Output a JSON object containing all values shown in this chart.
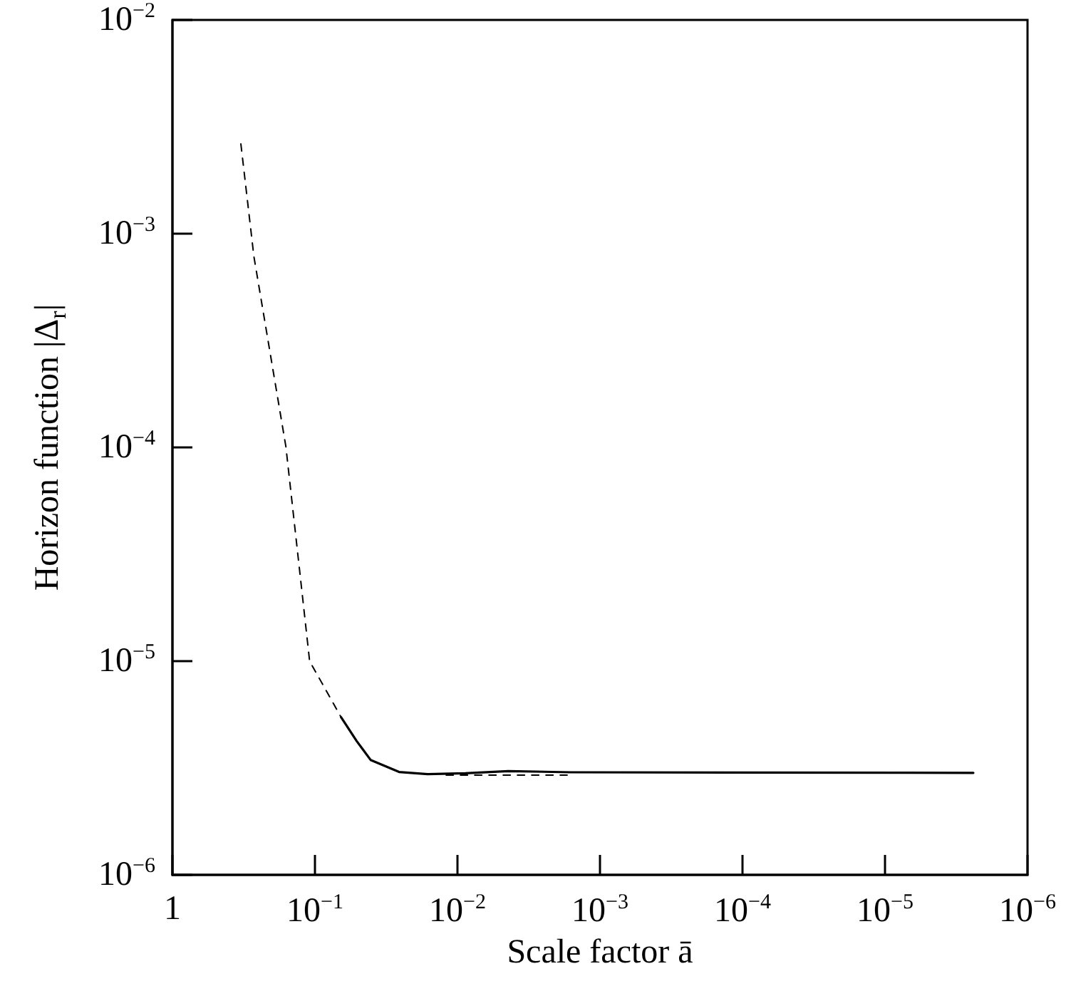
{
  "chart_data": {
    "type": "line",
    "xlabel": "Scale factor ā",
    "ylabel": "Horizon function |Δ$_{r}$|",
    "log": "xy",
    "grid": false,
    "marker": "none",
    "xlim": [
      1,
      1e-06
    ],
    "ylim": [
      1e-06,
      0.01
    ],
    "xticks": [
      {
        "value": 1,
        "label": "1"
      },
      {
        "value": 0.1,
        "label": "10$^{−1}$"
      },
      {
        "value": 0.01,
        "label": "10$^{−2}$"
      },
      {
        "value": 0.001,
        "label": "10$^{−3}$"
      },
      {
        "value": 0.0001,
        "label": "10$^{−4}$"
      },
      {
        "value": 1e-05,
        "label": "10$^{−5}$"
      },
      {
        "value": 1e-06,
        "label": "10$^{−6}$"
      }
    ],
    "yticks": [
      {
        "value": 1e-06,
        "label": "10$^{−6}$"
      },
      {
        "value": 1e-05,
        "label": "10$^{−5}$"
      },
      {
        "value": 0.0001,
        "label": "10$^{−4}$"
      },
      {
        "value": 0.001,
        "label": "10$^{−3}$"
      },
      {
        "value": 0.01,
        "label": "10$^{−2}$"
      }
    ],
    "series": [
      {
        "color": "#000000",
        "line_style": "dashed",
        "x": [
          0.331,
          0.268,
          0.16,
          0.124,
          0.109,
          0.0656
        ],
        "values": [
          0.00263,
          0.00078,
          0.000101,
          2.18e-05,
          1e-05,
          5.47e-06
        ]
      },
      {
        "color": "#000000",
        "line_style": "dashed",
        "x": [
          0.012,
          0.0017
        ],
        "values": [
          2.93e-06,
          2.93e-06
        ]
      },
      {
        "color": "#000000",
        "line_style": "solid",
        "x": [
          0.0656,
          0.051,
          0.0407,
          0.0257,
          0.0162,
          0.0088,
          0.0044,
          0.0016,
          2.4e-06
        ],
        "values": [
          5.47e-06,
          4.23e-06,
          3.45e-06,
          3.03e-06,
          2.96e-06,
          2.99e-06,
          3.06e-06,
          3.02e-06,
          3e-06
        ]
      }
    ]
  }
}
